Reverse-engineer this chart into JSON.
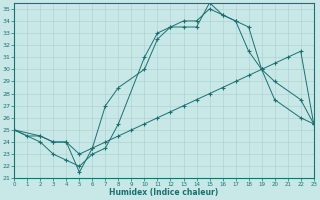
{
  "bg_color": "#c8e8e8",
  "line_color": "#1a7070",
  "grid_color": "#a8d0d0",
  "xlabel": "Humidex (Indice chaleur)",
  "xlim": [
    0,
    23
  ],
  "ylim": [
    21,
    35.5
  ],
  "xticks": [
    0,
    1,
    2,
    3,
    4,
    5,
    6,
    7,
    8,
    9,
    10,
    11,
    12,
    13,
    14,
    15,
    16,
    17,
    18,
    19,
    20,
    21,
    22,
    23
  ],
  "yticks": [
    21,
    22,
    23,
    24,
    25,
    26,
    27,
    28,
    29,
    30,
    31,
    32,
    33,
    34,
    35
  ],
  "line1_x": [
    0,
    1,
    2,
    3,
    4,
    5,
    6,
    7,
    8,
    9,
    10,
    11,
    12,
    13,
    14,
    15,
    16,
    17,
    18,
    19,
    20,
    21,
    22,
    23
  ],
  "line1_y": [
    25.0,
    24.5,
    24.5,
    24.0,
    24.0,
    23.0,
    23.5,
    24.0,
    24.5,
    25.0,
    25.5,
    26.0,
    26.5,
    27.0,
    27.5,
    28.0,
    28.5,
    29.0,
    29.5,
    30.0,
    30.5,
    31.0,
    31.5,
    25.5
  ],
  "line2_x": [
    0,
    2,
    3,
    4,
    5,
    6,
    7,
    8,
    10,
    11,
    12,
    13,
    14,
    15,
    16,
    17,
    18,
    19,
    20,
    22,
    23
  ],
  "line2_y": [
    25.0,
    24.5,
    24.0,
    24.0,
    21.5,
    23.5,
    27.0,
    28.5,
    30.0,
    32.5,
    33.5,
    34.0,
    34.0,
    35.0,
    34.5,
    34.0,
    33.5,
    30.0,
    29.0,
    27.5,
    25.5
  ],
  "line3_x": [
    0,
    2,
    3,
    4,
    5,
    6,
    7,
    8,
    10,
    11,
    12,
    13,
    14,
    15,
    16,
    17,
    18,
    19,
    20,
    22,
    23
  ],
  "line3_y": [
    25.0,
    24.0,
    23.0,
    22.5,
    22.0,
    23.0,
    23.5,
    25.5,
    31.0,
    33.0,
    33.5,
    33.5,
    33.5,
    35.5,
    34.5,
    34.0,
    31.5,
    30.0,
    27.5,
    26.0,
    25.5
  ]
}
